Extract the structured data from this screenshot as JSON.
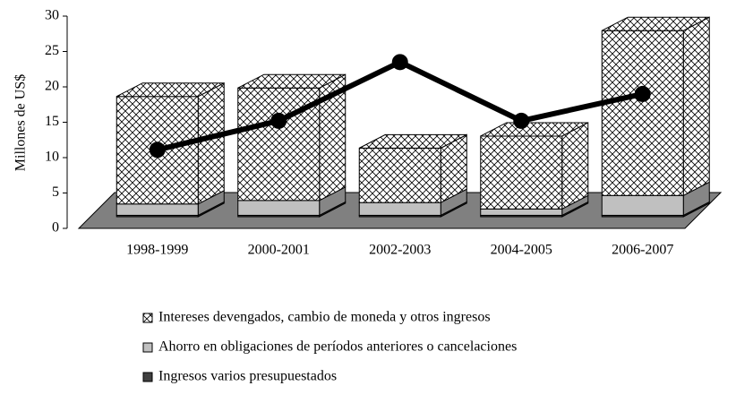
{
  "chart_data": {
    "type": "bar",
    "stacked": true,
    "ylabel": "Millones de US$",
    "categories": [
      "1998-1999",
      "2000-2001",
      "2002-2003",
      "2004-2005",
      "2006-2007"
    ],
    "series": [
      {
        "name": "Ingresos varios presupuestados",
        "color": "#404040",
        "values": [
          0.2,
          0.2,
          0.2,
          0.2,
          0.2
        ]
      },
      {
        "name": "Ahorro en obligaciones de períodos anteriores o cancelaciones",
        "color": "#c0c0c0",
        "values": [
          1.6,
          2.1,
          1.8,
          0.9,
          2.8
        ]
      },
      {
        "name": "Intereses devengados, cambio de moneda y otros ingresos",
        "color": "#ffffff",
        "pattern": "crosshatch",
        "values": [
          15.2,
          15.9,
          7.7,
          10.3,
          23.3
        ]
      },
      {
        "type": "line",
        "color": "#000000",
        "values": [
          11.1,
          15.2,
          23.5,
          15.2,
          19.0
        ]
      }
    ],
    "ylim": [
      0,
      30
    ],
    "yticks": [
      0,
      5,
      10,
      15,
      20,
      25,
      30
    ]
  }
}
